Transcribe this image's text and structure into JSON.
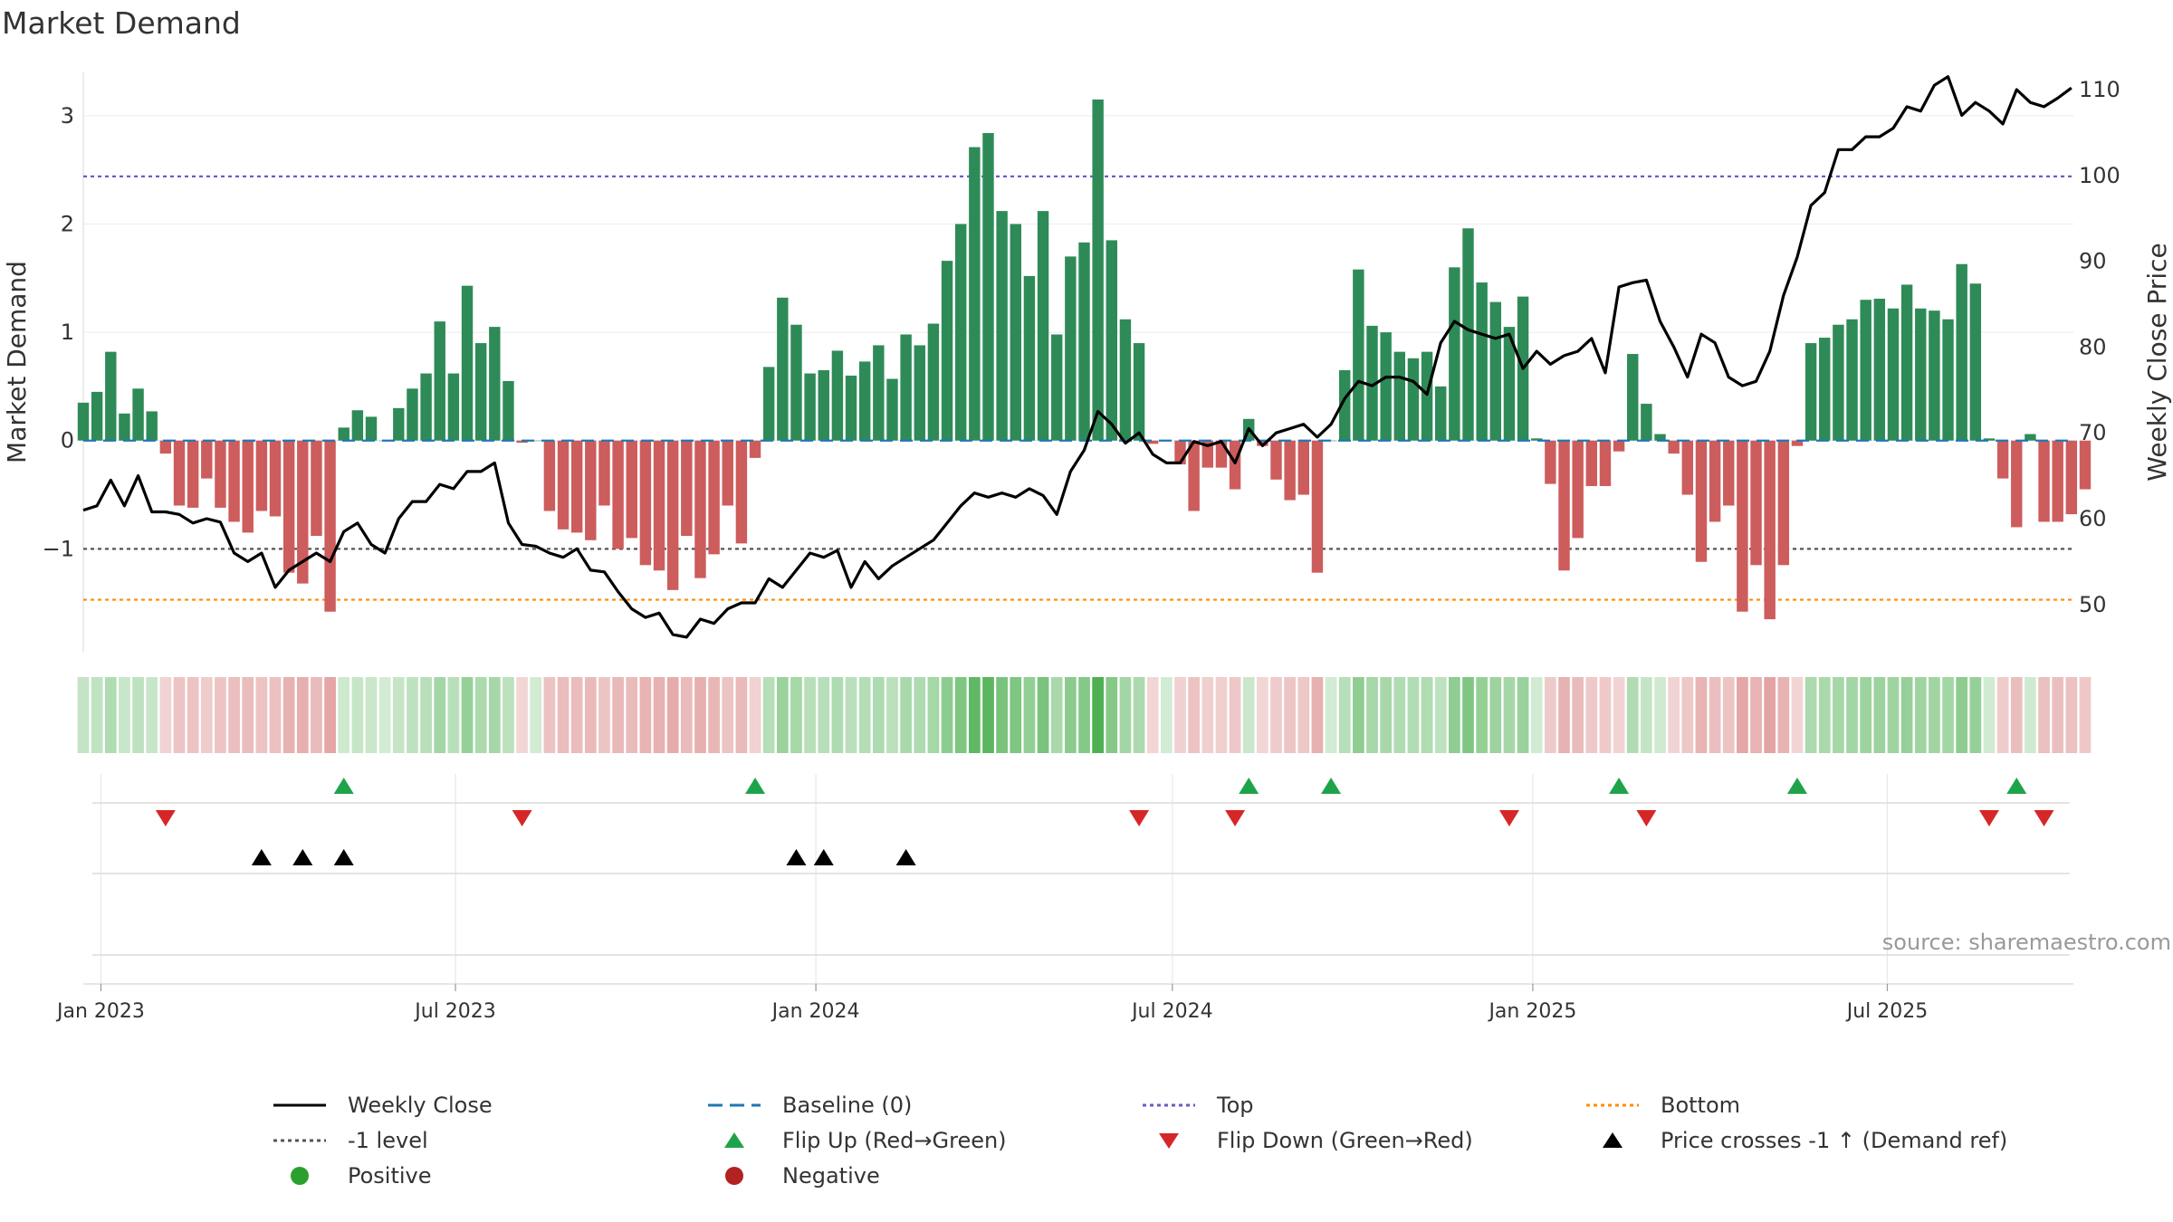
{
  "title": "Market Demand",
  "source": "source: sharemaestro.com",
  "colors": {
    "positive": "#2e8b57",
    "negative": "#cd5c5c",
    "close": "#000000",
    "baseline": "#1f77b4",
    "top": "#6a5acd",
    "bottom": "#ff8c00",
    "minus1": "#555555",
    "flip_up": "#1fa34a",
    "flip_down": "#d62728",
    "cross": "#000000",
    "legend_positive": "#2ca02c",
    "legend_negative": "#b22222"
  },
  "chart_data": {
    "type": "bar",
    "title": "Market Demand",
    "ylabel": "Market Demand",
    "y2label": "Weekly Close Price",
    "ylim": [
      -1.95,
      3.4
    ],
    "y2lim": [
      44.5,
      112
    ],
    "yticks": [
      -1,
      0,
      1,
      2,
      3
    ],
    "ytick_labels": [
      "−1",
      "0",
      "1",
      "2",
      "3"
    ],
    "y2ticks": [
      50,
      60,
      70,
      80,
      90,
      100,
      110
    ],
    "ref_lines": {
      "top": 2.44,
      "bottom": -1.47,
      "minus_one": -1,
      "baseline": 0
    },
    "x_start": "2022-12-23",
    "x_end": "2025-10-04",
    "x_tick_labels": [
      "Jan 2023",
      "Jul 2023",
      "Jan 2024",
      "Jul 2024",
      "Jan 2025",
      "Jul 2025"
    ],
    "x_tick_dates": [
      "2023-01-01",
      "2023-07-01",
      "2024-01-01",
      "2024-07-01",
      "2025-01-01",
      "2025-07-01"
    ],
    "first_week": "2022-12-23",
    "demand": [
      0.35,
      0.45,
      0.82,
      0.25,
      0.48,
      0.27,
      -0.12,
      -0.6,
      -0.62,
      -0.35,
      -0.62,
      -0.75,
      -0.85,
      -0.65,
      -0.7,
      -1.22,
      -1.32,
      -0.88,
      -1.58,
      0.12,
      0.28,
      0.22,
      0,
      0.3,
      0.48,
      0.62,
      1.1,
      0.62,
      1.43,
      0.9,
      1.05,
      0.55,
      -0.02,
      0,
      -0.65,
      -0.82,
      -0.85,
      -0.92,
      -0.6,
      -1,
      -0.9,
      -1.15,
      -1.2,
      -1.38,
      -0.88,
      -1.27,
      -1.05,
      -0.6,
      -0.95,
      -0.16,
      0.68,
      1.32,
      1.07,
      0.62,
      0.65,
      0.83,
      0.6,
      0.73,
      0.88,
      0.57,
      0.98,
      0.88,
      1.08,
      1.66,
      2.0,
      2.71,
      2.84,
      2.12,
      2.0,
      1.52,
      2.12,
      0.98,
      1.7,
      1.83,
      3.15,
      1.85,
      1.12,
      0.9,
      -0.03,
      0,
      -0.22,
      -0.65,
      -0.25,
      -0.25,
      -0.45,
      0.2,
      -0.05,
      -0.36,
      -0.55,
      -0.5,
      -1.22,
      0,
      0.65,
      1.58,
      1.06,
      1.0,
      0.82,
      0.76,
      0.82,
      0.5,
      1.6,
      1.96,
      1.46,
      1.28,
      1.05,
      1.33,
      0.02,
      -0.4,
      -1.2,
      -0.9,
      -0.42,
      -0.42,
      -0.1,
      0.8,
      0.34,
      0.06,
      -0.12,
      -0.5,
      -1.12,
      -0.75,
      -0.6,
      -1.58,
      -1.15,
      -1.65,
      -1.15,
      -0.05,
      0.9,
      0.95,
      1.07,
      1.12,
      1.3,
      1.31,
      1.22,
      1.44,
      1.22,
      1.2,
      1.12,
      1.63,
      1.45,
      0.02,
      -0.35,
      -0.8,
      0.06,
      -0.75,
      -0.75,
      -0.68,
      -0.45
    ],
    "close": [
      61,
      61.5,
      64.5,
      61.5,
      65,
      60.8,
      60.8,
      60.5,
      59.5,
      60,
      59.6,
      56,
      55,
      56,
      52,
      54,
      55,
      56,
      55,
      58.5,
      59.5,
      57,
      56,
      60,
      62,
      62,
      64,
      63.5,
      65.5,
      65.5,
      66.5,
      59.5,
      57,
      56.8,
      56,
      55.5,
      56.5,
      54,
      53.8,
      51.5,
      49.5,
      48.5,
      49,
      46.5,
      46.2,
      48.3,
      47.8,
      49.5,
      50.2,
      50.2,
      53,
      52,
      54,
      56,
      55.5,
      56.3,
      52,
      55,
      53,
      54.5,
      55.5,
      56.5,
      57.5,
      59.5,
      61.5,
      63,
      62.5,
      63,
      62.5,
      63.5,
      62.7,
      60.5,
      65.5,
      68,
      72.5,
      71,
      68.8,
      70,
      67.5,
      66.5,
      66.5,
      69,
      68.5,
      69,
      66.5,
      70.5,
      68.5,
      70,
      70.5,
      71,
      69.5,
      71,
      74,
      76,
      75.5,
      76.5,
      76.5,
      76,
      74.5,
      80.5,
      83,
      82,
      81.5,
      81,
      81.5,
      77.5,
      79.5,
      78,
      79,
      79.5,
      81,
      77,
      87,
      87.5,
      87.8,
      83,
      80,
      76.5,
      81.5,
      80.5,
      76.5,
      75.5,
      76,
      79.5,
      86,
      90.5,
      96.5,
      98,
      103,
      103,
      104.5,
      104.5,
      105.5,
      108,
      107.5,
      110.5,
      111.5,
      107,
      108.5,
      107.5,
      106,
      110,
      108.5,
      108,
      109,
      110.2
    ],
    "flip_up_weeks": [
      19,
      49,
      85,
      91,
      112,
      125,
      141
    ],
    "flip_down_weeks": [
      6,
      32,
      77,
      84,
      104,
      114,
      139,
      143
    ],
    "cross_weeks": [
      13,
      16,
      19,
      52,
      54,
      60
    ]
  },
  "legend": [
    {
      "label": "Weekly Close",
      "symbol": "line-solid",
      "color": "#000000"
    },
    {
      "label": "Baseline (0)",
      "symbol": "line-dash",
      "color": "#1f77b4"
    },
    {
      "label": "Top",
      "symbol": "line-dot",
      "color": "#6a5acd"
    },
    {
      "label": "Bottom",
      "symbol": "line-dot",
      "color": "#ff8c00"
    },
    {
      "label": "-1 level",
      "symbol": "line-dot",
      "color": "#555555"
    },
    {
      "label": "Flip Up (Red→Green)",
      "symbol": "triangle-up",
      "color": "#1fa34a"
    },
    {
      "label": "Flip Down (Green→Red)",
      "symbol": "triangle-down",
      "color": "#d62728"
    },
    {
      "label": "Price crosses -1 ↑ (Demand ref)",
      "symbol": "triangle-up",
      "color": "#000000"
    },
    {
      "label": "Positive",
      "symbol": "circle",
      "color": "#2ca02c"
    },
    {
      "label": "Negative",
      "symbol": "circle",
      "color": "#b22222"
    }
  ]
}
